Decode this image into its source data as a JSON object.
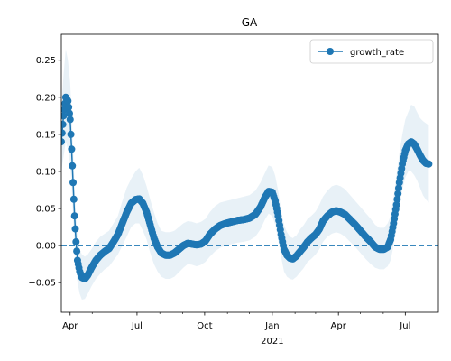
{
  "chart_data": {
    "type": "line",
    "title": "GA",
    "xlabel": "",
    "ylabel": "",
    "x_axis": {
      "range": [
        "2020-03-20",
        "2021-08-15"
      ],
      "major_ticks": [
        {
          "date": "2020-04-01",
          "label": "Apr"
        },
        {
          "date": "2020-07-01",
          "label": "Jul"
        },
        {
          "date": "2020-10-01",
          "label": "Oct"
        },
        {
          "date": "2021-01-01",
          "label": "Jan"
        },
        {
          "date": "2021-04-01",
          "label": "Apr"
        },
        {
          "date": "2021-07-01",
          "label": "Jul"
        }
      ],
      "year_label": {
        "date": "2021-01-01",
        "label": "2021"
      },
      "minor_tick_dates": [
        "2020-05-01",
        "2020-06-01",
        "2020-08-01",
        "2020-09-01",
        "2020-11-01",
        "2020-12-01",
        "2021-02-01",
        "2021-03-01",
        "2021-05-01",
        "2021-06-01",
        "2021-08-01"
      ]
    },
    "y_axis": {
      "range": [
        -0.09,
        0.285
      ],
      "ticks": [
        -0.05,
        0.0,
        0.05,
        0.1,
        0.15,
        0.2,
        0.25
      ],
      "tick_labels": [
        "−0.05",
        "0.00",
        "0.05",
        "0.10",
        "0.15",
        "0.20",
        "0.25"
      ]
    },
    "reference_line": {
      "y": 0.0,
      "style": "dashed"
    },
    "grid": false,
    "legend": {
      "placement": "top-right",
      "entries": [
        "growth_rate"
      ]
    },
    "colors": {
      "series": "#1f77b4",
      "band": "#1f77b4"
    },
    "series": [
      {
        "name": "growth_rate",
        "points": [
          [
            "2020-03-20",
            0.14,
            0.1,
            0.185
          ],
          [
            "2020-03-23",
            0.175,
            0.12,
            0.23
          ],
          [
            "2020-03-26",
            0.2,
            0.14,
            0.265
          ],
          [
            "2020-03-29",
            0.195,
            0.13,
            0.25
          ],
          [
            "2020-04-01",
            0.17,
            0.11,
            0.22
          ],
          [
            "2020-04-03",
            0.13,
            0.08,
            0.18
          ],
          [
            "2020-04-05",
            0.085,
            0.04,
            0.13
          ],
          [
            "2020-04-07",
            0.04,
            0.0,
            0.08
          ],
          [
            "2020-04-09",
            0.005,
            -0.03,
            0.04
          ],
          [
            "2020-04-11",
            -0.02,
            -0.05,
            0.01
          ],
          [
            "2020-04-14",
            -0.035,
            -0.065,
            -0.005
          ],
          [
            "2020-04-17",
            -0.043,
            -0.073,
            -0.012
          ],
          [
            "2020-04-21",
            -0.045,
            -0.072,
            -0.015
          ],
          [
            "2020-04-25",
            -0.04,
            -0.065,
            -0.012
          ],
          [
            "2020-04-30",
            -0.03,
            -0.055,
            -0.005
          ],
          [
            "2020-05-06",
            -0.02,
            -0.045,
            0.005
          ],
          [
            "2020-05-12",
            -0.013,
            -0.038,
            0.012
          ],
          [
            "2020-05-18",
            -0.008,
            -0.032,
            0.016
          ],
          [
            "2020-05-24",
            -0.004,
            -0.028,
            0.02
          ],
          [
            "2020-05-30",
            0.005,
            -0.02,
            0.03
          ],
          [
            "2020-06-05",
            0.015,
            -0.012,
            0.04
          ],
          [
            "2020-06-11",
            0.03,
            0.0,
            0.06
          ],
          [
            "2020-06-17",
            0.045,
            0.012,
            0.078
          ],
          [
            "2020-06-23",
            0.057,
            0.025,
            0.09
          ],
          [
            "2020-06-29",
            0.062,
            0.03,
            0.1
          ],
          [
            "2020-07-04",
            0.063,
            0.03,
            0.105
          ],
          [
            "2020-07-09",
            0.057,
            0.02,
            0.095
          ],
          [
            "2020-07-14",
            0.045,
            0.008,
            0.08
          ],
          [
            "2020-07-19",
            0.028,
            -0.01,
            0.062
          ],
          [
            "2020-07-24",
            0.01,
            -0.025,
            0.045
          ],
          [
            "2020-07-29",
            -0.002,
            -0.035,
            0.03
          ],
          [
            "2020-08-03",
            -0.01,
            -0.042,
            0.02
          ],
          [
            "2020-08-09",
            -0.013,
            -0.045,
            0.018
          ],
          [
            "2020-08-15",
            -0.013,
            -0.045,
            0.018
          ],
          [
            "2020-08-21",
            -0.01,
            -0.042,
            0.02
          ],
          [
            "2020-08-27",
            -0.005,
            -0.036,
            0.025
          ],
          [
            "2020-09-02",
            0.0,
            -0.03,
            0.03
          ],
          [
            "2020-09-08",
            0.003,
            -0.025,
            0.033
          ],
          [
            "2020-09-14",
            0.002,
            -0.026,
            0.032
          ],
          [
            "2020-09-20",
            0.001,
            -0.028,
            0.03
          ],
          [
            "2020-09-26",
            0.002,
            -0.026,
            0.032
          ],
          [
            "2020-10-02",
            0.006,
            -0.022,
            0.036
          ],
          [
            "2020-10-08",
            0.015,
            -0.015,
            0.045
          ],
          [
            "2020-10-15",
            0.022,
            -0.008,
            0.053
          ],
          [
            "2020-10-22",
            0.027,
            -0.003,
            0.058
          ],
          [
            "2020-10-30",
            0.03,
            0.0,
            0.06
          ],
          [
            "2020-11-07",
            0.032,
            0.002,
            0.062
          ],
          [
            "2020-11-15",
            0.034,
            0.004,
            0.064
          ],
          [
            "2020-11-23",
            0.035,
            0.005,
            0.066
          ],
          [
            "2020-12-01",
            0.037,
            0.007,
            0.068
          ],
          [
            "2020-12-09",
            0.042,
            0.012,
            0.074
          ],
          [
            "2020-12-16",
            0.052,
            0.022,
            0.085
          ],
          [
            "2020-12-22",
            0.065,
            0.035,
            0.098
          ],
          [
            "2020-12-27",
            0.073,
            0.043,
            0.108
          ],
          [
            "2021-01-01",
            0.072,
            0.04,
            0.106
          ],
          [
            "2021-01-05",
            0.06,
            0.028,
            0.094
          ],
          [
            "2021-01-09",
            0.04,
            0.008,
            0.074
          ],
          [
            "2021-01-13",
            0.015,
            -0.015,
            0.048
          ],
          [
            "2021-01-17",
            -0.005,
            -0.035,
            0.028
          ],
          [
            "2021-01-21",
            -0.013,
            -0.042,
            0.018
          ],
          [
            "2021-01-25",
            -0.017,
            -0.045,
            0.012
          ],
          [
            "2021-01-29",
            -0.018,
            -0.046,
            0.01
          ],
          [
            "2021-02-03",
            -0.014,
            -0.042,
            0.014
          ],
          [
            "2021-02-08",
            -0.008,
            -0.036,
            0.022
          ],
          [
            "2021-02-13",
            -0.002,
            -0.03,
            0.028
          ],
          [
            "2021-02-18",
            0.005,
            -0.022,
            0.036
          ],
          [
            "2021-02-23",
            0.01,
            -0.018,
            0.04
          ],
          [
            "2021-03-01",
            0.015,
            -0.012,
            0.046
          ],
          [
            "2021-03-06",
            0.022,
            -0.005,
            0.055
          ],
          [
            "2021-03-11",
            0.033,
            0.005,
            0.066
          ],
          [
            "2021-03-17",
            0.04,
            0.012,
            0.074
          ],
          [
            "2021-03-23",
            0.045,
            0.016,
            0.08
          ],
          [
            "2021-03-29",
            0.047,
            0.018,
            0.082
          ],
          [
            "2021-04-04",
            0.045,
            0.016,
            0.08
          ],
          [
            "2021-04-10",
            0.042,
            0.012,
            0.076
          ],
          [
            "2021-04-17",
            0.035,
            0.005,
            0.068
          ],
          [
            "2021-04-24",
            0.028,
            -0.002,
            0.06
          ],
          [
            "2021-05-01",
            0.02,
            -0.01,
            0.052
          ],
          [
            "2021-05-08",
            0.012,
            -0.018,
            0.044
          ],
          [
            "2021-05-15",
            0.005,
            -0.025,
            0.036
          ],
          [
            "2021-05-21",
            -0.002,
            -0.03,
            0.028
          ],
          [
            "2021-05-27",
            -0.005,
            -0.032,
            0.024
          ],
          [
            "2021-06-02",
            -0.005,
            -0.032,
            0.024
          ],
          [
            "2021-06-07",
            -0.002,
            -0.028,
            0.03
          ],
          [
            "2021-06-11",
            0.008,
            -0.02,
            0.04
          ],
          [
            "2021-06-15",
            0.03,
            0.0,
            0.065
          ],
          [
            "2021-06-19",
            0.055,
            0.022,
            0.095
          ],
          [
            "2021-06-23",
            0.085,
            0.05,
            0.125
          ],
          [
            "2021-06-27",
            0.11,
            0.075,
            0.15
          ],
          [
            "2021-07-01",
            0.128,
            0.092,
            0.17
          ],
          [
            "2021-07-05",
            0.137,
            0.1,
            0.18
          ],
          [
            "2021-07-09",
            0.14,
            0.1,
            0.19
          ],
          [
            "2021-07-13",
            0.137,
            0.095,
            0.188
          ],
          [
            "2021-07-17",
            0.13,
            0.088,
            0.18
          ],
          [
            "2021-07-21",
            0.122,
            0.078,
            0.172
          ],
          [
            "2021-07-25",
            0.115,
            0.068,
            0.168
          ],
          [
            "2021-07-29",
            0.111,
            0.062,
            0.165
          ],
          [
            "2021-08-02",
            0.11,
            0.058,
            0.162
          ]
        ]
      }
    ]
  }
}
